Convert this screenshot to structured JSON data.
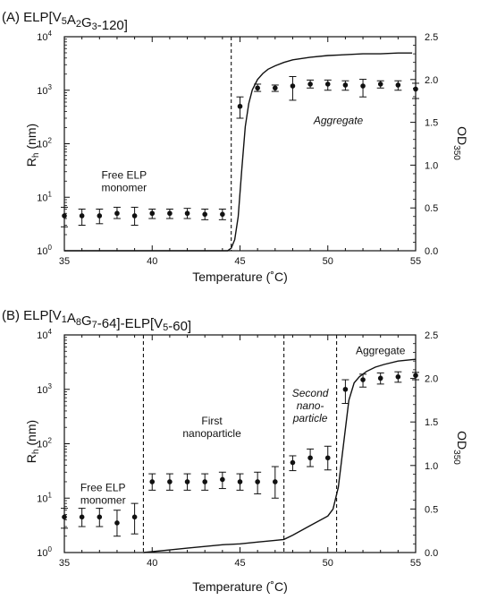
{
  "chart_data": [
    {
      "type": "scatter",
      "title_parts": [
        {
          "t": "(A) ELP[V",
          "sub": false
        },
        {
          "t": "5",
          "sub": true
        },
        {
          "t": "A",
          "sub": false
        },
        {
          "t": "2",
          "sub": true
        },
        {
          "t": "G",
          "sub": false
        },
        {
          "t": "3",
          "sub": true
        },
        {
          "t": "-120]",
          "sub": false
        }
      ],
      "xlabel": "Temperature (˚C)",
      "ylabel_left": {
        "main": "R",
        "sub": "h",
        "rest": " (nm)"
      },
      "ylabel_right": {
        "main": "OD",
        "sub": "350"
      },
      "xlim": [
        35,
        55
      ],
      "xticks": [
        35,
        40,
        45,
        50,
        55
      ],
      "yleft_scale": "log",
      "yleft_lim": [
        1,
        10000
      ],
      "yleft_ticks": [
        {
          "v": 1,
          "b": "10",
          "e": "0"
        },
        {
          "v": 10,
          "b": "10",
          "e": "1"
        },
        {
          "v": 100,
          "b": "10",
          "e": "2"
        },
        {
          "v": 1000,
          "b": "10",
          "e": "3"
        },
        {
          "v": 10000,
          "b": "10",
          "e": "4"
        }
      ],
      "yright_lim": [
        0,
        2.5
      ],
      "yright_ticks": [
        "0.0",
        "0.5",
        "1.0",
        "1.5",
        "2.0",
        "2.5"
      ],
      "vlines": [
        44.5
      ],
      "series": [
        {
          "marker": "circle-with-errorbars",
          "x": [
            35,
            36,
            37,
            38,
            39,
            40,
            41,
            42,
            43,
            44,
            45,
            46,
            47,
            48,
            49,
            50,
            51,
            52,
            53,
            54,
            55
          ],
          "y": [
            4.5,
            4.5,
            4.5,
            5,
            4.5,
            5,
            5,
            5,
            4.8,
            4.8,
            500,
            1100,
            1100,
            1200,
            1300,
            1300,
            1250,
            1200,
            1300,
            1250,
            1050
          ],
          "y_low": [
            2.8,
            3,
            3.2,
            4,
            3,
            4,
            4,
            4,
            3.8,
            3.8,
            300,
            950,
            950,
            650,
            1100,
            1000,
            1000,
            750,
            1100,
            1000,
            700
          ],
          "y_high": [
            6.5,
            6,
            6,
            6.5,
            6.5,
            6,
            6,
            6.2,
            6,
            6,
            750,
            1300,
            1250,
            1800,
            1550,
            1550,
            1500,
            1600,
            1500,
            1500,
            1350
          ]
        },
        {
          "marker": "line",
          "axis": "right",
          "x": [
            35,
            40,
            44.3,
            44.5,
            44.7,
            44.9,
            45.1,
            45.3,
            45.5,
            45.7,
            46.0,
            46.3,
            46.6,
            47,
            47.5,
            48,
            49,
            50,
            51,
            52,
            53,
            54,
            54.8
          ],
          "y": [
            0,
            0,
            0,
            0.03,
            0.13,
            0.4,
            0.95,
            1.45,
            1.72,
            1.88,
            2.0,
            2.07,
            2.12,
            2.16,
            2.2,
            2.23,
            2.26,
            2.28,
            2.29,
            2.3,
            2.3,
            2.31,
            2.31
          ]
        }
      ],
      "annotations": [
        {
          "lines": [
            "Free ELP",
            "monomer"
          ],
          "italic": false,
          "x": 38.4,
          "y": 20
        },
        {
          "lines": [
            "Aggregate"
          ],
          "italic": true,
          "x": 50.6,
          "y": 270
        }
      ]
    },
    {
      "type": "scatter",
      "title_parts": [
        {
          "t": "(B) ELP[V",
          "sub": false
        },
        {
          "t": "1",
          "sub": true
        },
        {
          "t": "A",
          "sub": false
        },
        {
          "t": "8",
          "sub": true
        },
        {
          "t": "G",
          "sub": false
        },
        {
          "t": "7",
          "sub": true
        },
        {
          "t": "-64]-ELP[V",
          "sub": false
        },
        {
          "t": "5",
          "sub": true
        },
        {
          "t": "-60]",
          "sub": false
        }
      ],
      "xlabel": "Temperature (˚C)",
      "ylabel_left": {
        "main": "R",
        "sub": "h",
        "rest": " (nm)"
      },
      "ylabel_right": {
        "main": "OD",
        "sub": "350"
      },
      "xlim": [
        35,
        55
      ],
      "xticks": [
        35,
        40,
        45,
        50,
        55
      ],
      "yleft_scale": "log",
      "yleft_lim": [
        1,
        10000
      ],
      "yleft_ticks": [
        {
          "v": 1,
          "b": "10",
          "e": "0"
        },
        {
          "v": 10,
          "b": "10",
          "e": "1"
        },
        {
          "v": 100,
          "b": "10",
          "e": "2"
        },
        {
          "v": 1000,
          "b": "10",
          "e": "3"
        },
        {
          "v": 10000,
          "b": "10",
          "e": "4"
        }
      ],
      "yright_lim": [
        0,
        2.5
      ],
      "yright_ticks": [
        "0.0",
        "0.5",
        "1.0",
        "1.5",
        "2.0",
        "2.5"
      ],
      "vlines": [
        39.5,
        47.5,
        50.5
      ],
      "series": [
        {
          "marker": "circle-with-errorbars",
          "x": [
            35,
            36,
            37,
            38,
            39,
            40,
            41,
            42,
            43,
            44,
            45,
            46,
            47,
            48,
            49,
            50,
            51,
            52,
            53,
            54,
            55
          ],
          "y": [
            4.5,
            4.5,
            4.5,
            3.5,
            4.5,
            20,
            20,
            20,
            20,
            22,
            20,
            20,
            20,
            45,
            55,
            55,
            1000,
            1500,
            1600,
            1700,
            1800
          ],
          "y_low": [
            2.8,
            3,
            3,
            2,
            2.2,
            14,
            14,
            14,
            14,
            15,
            14,
            12,
            10,
            32,
            38,
            33,
            550,
            1100,
            1250,
            1350,
            1500
          ],
          "y_high": [
            6.5,
            6.5,
            6.5,
            6,
            8,
            28,
            28,
            28,
            28,
            30,
            28,
            30,
            38,
            60,
            80,
            90,
            1500,
            1900,
            2000,
            2100,
            2050
          ]
        },
        {
          "marker": "line",
          "axis": "right",
          "x": [
            39.5,
            41,
            42,
            43,
            44,
            45,
            46,
            47,
            47.5,
            48,
            49,
            50,
            50.3,
            50.6,
            50.9,
            51.2,
            51.5,
            51.8,
            52.2,
            52.7,
            53.2,
            54,
            55
          ],
          "y": [
            0,
            0.03,
            0.05,
            0.07,
            0.09,
            0.1,
            0.12,
            0.14,
            0.15,
            0.2,
            0.31,
            0.42,
            0.5,
            0.75,
            1.25,
            1.75,
            1.95,
            2.02,
            2.08,
            2.13,
            2.16,
            2.2,
            2.22
          ]
        }
      ],
      "annotations": [
        {
          "lines": [
            "Free ELP",
            "monomer"
          ],
          "italic": false,
          "x": 37.2,
          "y": 12
        },
        {
          "lines": [
            "First",
            "nanoparticle"
          ],
          "italic": false,
          "x": 43.4,
          "y": 200
        },
        {
          "lines": [
            "Second",
            "nano-",
            "particle"
          ],
          "italic": true,
          "x": 49.0,
          "y": 500
        },
        {
          "lines": [
            "Aggregate"
          ],
          "italic": false,
          "x": 53.0,
          "y": 5200
        }
      ]
    }
  ]
}
